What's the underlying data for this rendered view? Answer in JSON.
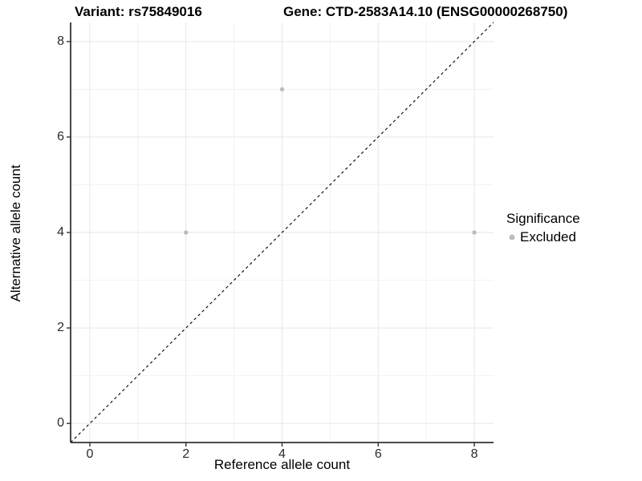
{
  "chart_data": {
    "type": "scatter",
    "title_left": "Variant: rs75849016",
    "title_right": "Gene: CTD-2583A14.10 (ENSG00000268750)",
    "xlabel": "Reference allele count",
    "ylabel": "Alternative allele count",
    "xlim": [
      -0.4,
      8.4
    ],
    "ylim": [
      -0.4,
      8.4
    ],
    "xticks": [
      0,
      2,
      4,
      6,
      8
    ],
    "yticks": [
      0,
      2,
      4,
      6,
      8
    ],
    "minor_ticks": [
      1,
      3,
      5,
      7
    ],
    "grid": {
      "major_color": "#e6e6e6",
      "minor_color": "#f2f2f2",
      "on": true
    },
    "axis_color": "#333333",
    "tick_label_color": "#2b2b2b",
    "identity_line": {
      "style": "dashed",
      "color": "#000000",
      "from": [
        -0.4,
        -0.4
      ],
      "to": [
        8.4,
        8.4
      ]
    },
    "series": [
      {
        "name": "Excluded",
        "color": "#bdbdbd",
        "points": [
          {
            "x": 2,
            "y": 4
          },
          {
            "x": 4,
            "y": 7
          },
          {
            "x": 8,
            "y": 4
          }
        ]
      }
    ],
    "legend": {
      "title": "Significance",
      "position": "right",
      "items": [
        {
          "label": "Excluded",
          "color": "#bdbdbd"
        }
      ]
    }
  }
}
